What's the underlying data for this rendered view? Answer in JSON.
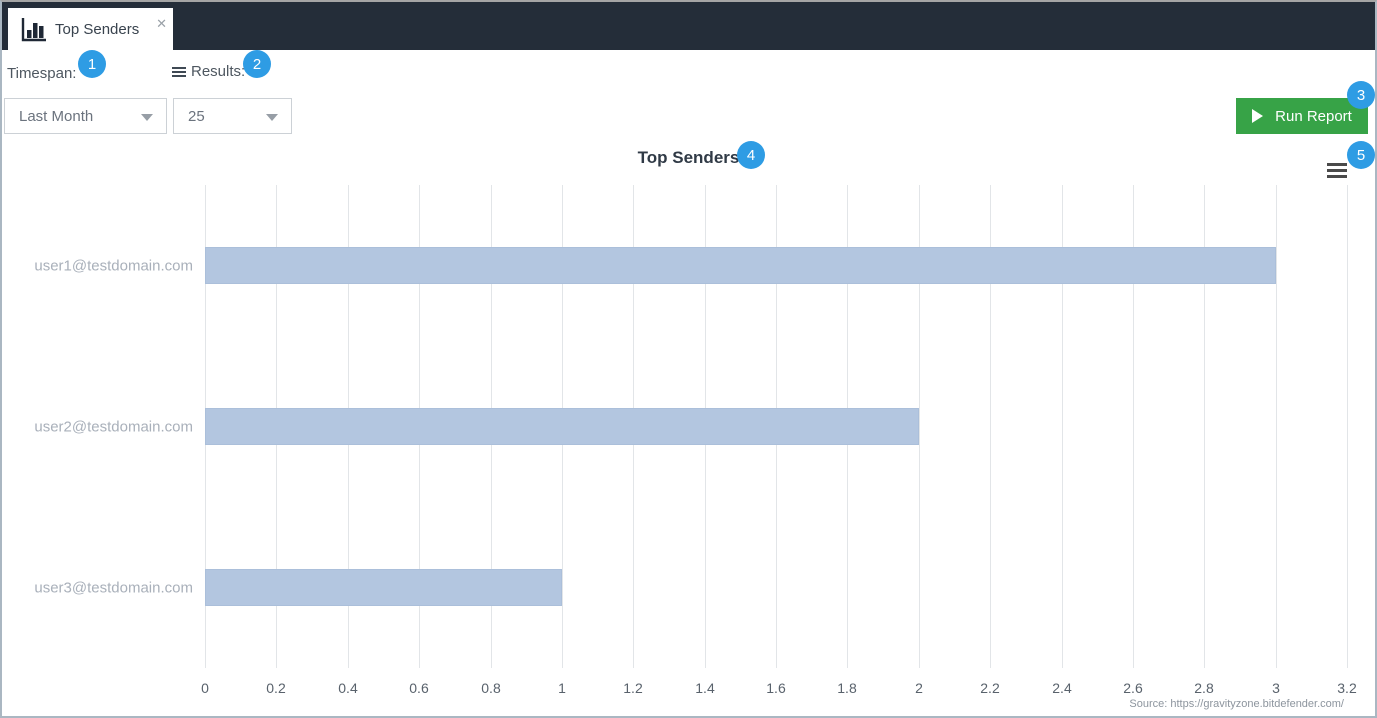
{
  "topbar": {
    "tab": {
      "label": "Top Senders",
      "close_glyph": "✕"
    }
  },
  "controls": {
    "timespan": {
      "label": "Timespan:",
      "value": "Last Month"
    },
    "results": {
      "label": "Results:",
      "value": "25"
    },
    "run_report_label": "Run Report"
  },
  "badges": [
    "1",
    "2",
    "3",
    "4",
    "5"
  ],
  "chart_data": {
    "type": "bar",
    "orientation": "horizontal",
    "title": "Top Senders",
    "categories": [
      "user1@testdomain.com",
      "user2@testdomain.com",
      "user3@testdomain.com"
    ],
    "values": [
      3,
      2,
      1
    ],
    "xlim": [
      0,
      3.2
    ],
    "xtick_labels": [
      "0",
      "0.2",
      "0.4",
      "0.6",
      "0.8",
      "1",
      "1.2",
      "1.4",
      "1.6",
      "1.8",
      "2",
      "2.2",
      "2.4",
      "2.6",
      "2.8",
      "3",
      "3.2"
    ],
    "grid": true,
    "legend": false,
    "bar_color": "#b3c6e0"
  },
  "footer": {
    "source": "Source: https://gravityzone.bitdefender.com/"
  },
  "colors": {
    "topbar_bg": "#242d39",
    "accent_blue": "#2e9ce4",
    "button_green": "#37a347",
    "bar_fill": "#b3c6e0"
  }
}
